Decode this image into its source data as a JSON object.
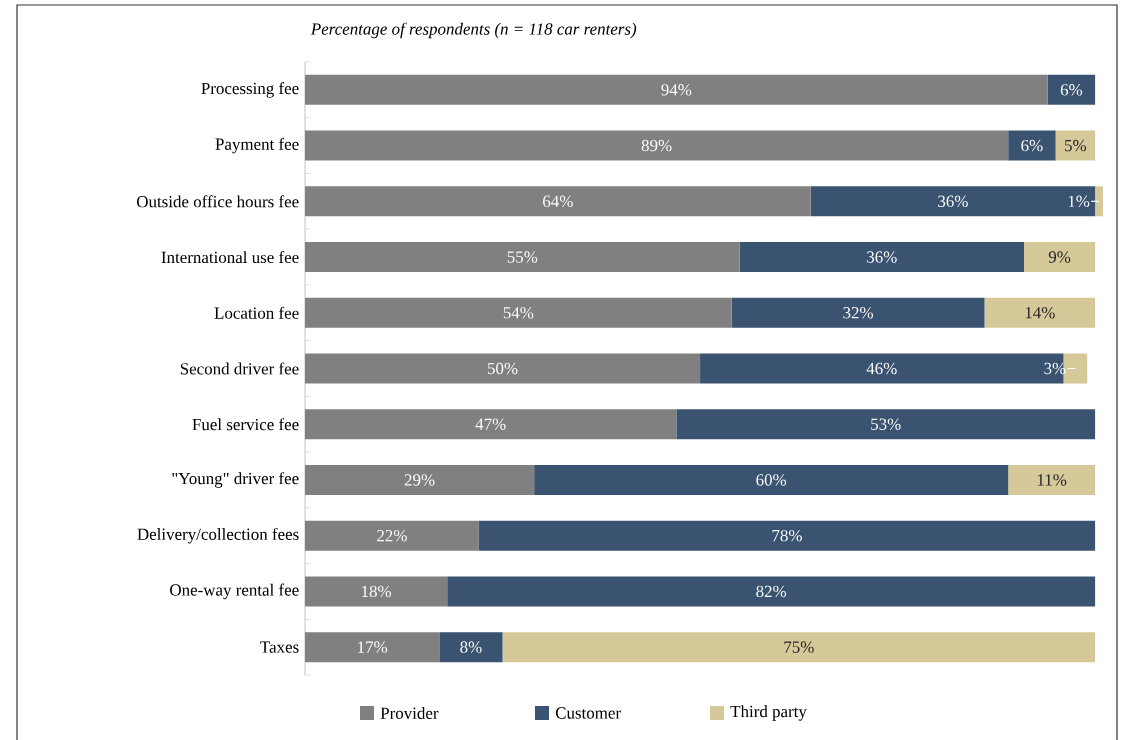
{
  "chart_data": {
    "type": "bar",
    "orientation": "horizontal",
    "stacked": true,
    "title": "Percentage of respondents (n = 118 car renters)",
    "categories": [
      "Processing fee",
      "Payment fee",
      "Outside office hours fee",
      "International use fee",
      "Location fee",
      "Second driver fee",
      "Fuel service fee",
      "\"Young\" driver fee",
      "Delivery/collection fees",
      "One-way rental fee",
      "Taxes"
    ],
    "series": [
      {
        "name": "Provider",
        "color": "#808080",
        "values": [
          94,
          89,
          64,
          55,
          54,
          50,
          47,
          29,
          22,
          18,
          17
        ],
        "value_labels": [
          "94%",
          "89%",
          "64%",
          "55%",
          "54%",
          "50%",
          "47%",
          "29%",
          "22%",
          "18%",
          "17%"
        ]
      },
      {
        "name": "Customer",
        "color": "#3a5370",
        "values": [
          6,
          6,
          36,
          36,
          32,
          46,
          53,
          60,
          78,
          82,
          8
        ],
        "value_labels": [
          "6%",
          "6%",
          "36%",
          "36%",
          "32%",
          "46%",
          "53%",
          "60%",
          "78%",
          "82%",
          "8%"
        ]
      },
      {
        "name": "Third party",
        "color": "#d5c999",
        "values": [
          null,
          5,
          1,
          9,
          14,
          3,
          null,
          11,
          null,
          null,
          75
        ],
        "value_labels": [
          null,
          "5%",
          "1%",
          "9%",
          "14%",
          "3%",
          null,
          "11%",
          null,
          null,
          "75%"
        ]
      }
    ],
    "legend": "bottom"
  }
}
